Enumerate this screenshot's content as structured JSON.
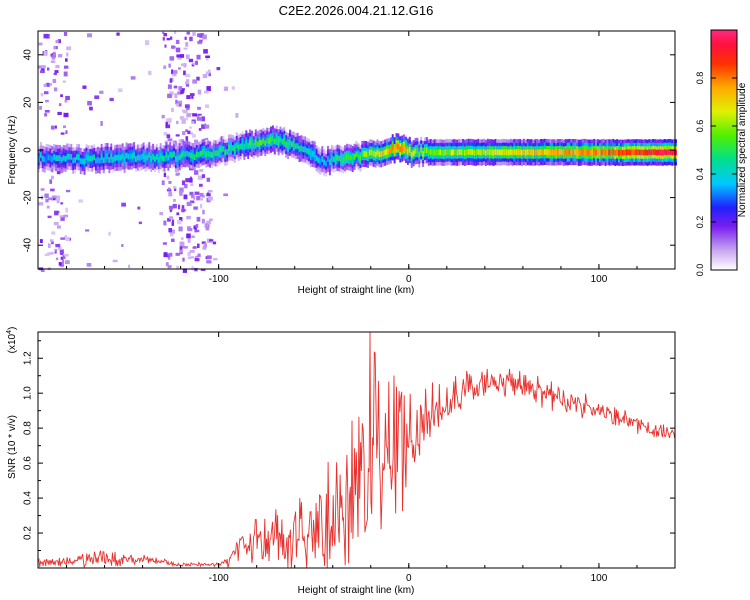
{
  "chart_data": [
    {
      "type": "heatmap",
      "title": "C2E2.2026.004.21.12.G16",
      "xlabel": "Height of straight line (km)",
      "ylabel": "Frequency (Hz)",
      "xlim": [
        -195,
        140
      ],
      "ylim": [
        -50,
        50
      ],
      "xticks": [
        -100,
        0,
        100
      ],
      "yticks": [
        -40,
        -20,
        0,
        20,
        40
      ],
      "ridge_x": [
        -195,
        -170,
        -150,
        -130,
        -110,
        -90,
        -80,
        -70,
        -60,
        -50,
        -45,
        -40,
        -30,
        -20,
        -10,
        -5,
        0,
        5,
        20,
        60,
        100,
        140
      ],
      "ridge_freq": [
        -3,
        -4,
        -3,
        -3,
        -2,
        1,
        3,
        4,
        2,
        -2,
        -5,
        -4,
        -3,
        -2,
        0,
        1,
        -1,
        -1,
        -1,
        -1,
        -1,
        -1
      ],
      "ridge_amplitude": [
        0.35,
        0.4,
        0.4,
        0.4,
        0.45,
        0.45,
        0.5,
        0.5,
        0.45,
        0.4,
        0.35,
        0.45,
        0.5,
        0.6,
        0.75,
        0.85,
        0.7,
        0.55,
        0.6,
        0.7,
        0.8,
        0.95
      ],
      "colorbar": {
        "label": "Normalized spectral amplitude",
        "range": [
          0.0,
          1.0
        ],
        "ticks": [
          0.0,
          0.2,
          0.4,
          0.6,
          0.8
        ],
        "tick_labels": [
          "0.0",
          "0.2",
          "0.4",
          "0.6",
          "0.8"
        ]
      }
    },
    {
      "type": "line",
      "xlabel": "Height of straight line (km)",
      "ylabel": "SNR (10 * v/v)",
      "scale_label": "(x10",
      "scale_exp": "4",
      "scale_close": ")",
      "xlim": [
        -195,
        140
      ],
      "ylim": [
        0,
        1.35
      ],
      "xticks": [
        -100,
        0,
        100
      ],
      "yticks": [
        0.2,
        0.4,
        0.6,
        0.8,
        1.0,
        1.2
      ],
      "ytick_labels": [
        "0.2",
        "0.4",
        "0.6",
        "0.8",
        "1.0",
        "1.2"
      ],
      "color": "#e8312d",
      "envelope_x": [
        -195,
        -180,
        -160,
        -140,
        -120,
        -100,
        -95,
        -90,
        -80,
        -70,
        -60,
        -50,
        -40,
        -30,
        -25,
        -20,
        -15,
        -10,
        0,
        10,
        20,
        30,
        40,
        50,
        60,
        70,
        80,
        90,
        100,
        110,
        120,
        130,
        140
      ],
      "envelope_mid": [
        0.03,
        0.04,
        0.06,
        0.05,
        0.02,
        0.02,
        0.04,
        0.1,
        0.14,
        0.18,
        0.2,
        0.22,
        0.28,
        0.35,
        0.42,
        0.48,
        0.55,
        0.62,
        0.72,
        0.85,
        0.95,
        1.02,
        1.05,
        1.06,
        1.04,
        1.0,
        0.96,
        0.94,
        0.9,
        0.86,
        0.82,
        0.78,
        0.76
      ],
      "envelope_spread": [
        0.03,
        0.03,
        0.05,
        0.03,
        0.01,
        0.01,
        0.05,
        0.1,
        0.12,
        0.16,
        0.2,
        0.28,
        0.35,
        0.4,
        0.45,
        0.5,
        0.5,
        0.4,
        0.25,
        0.18,
        0.12,
        0.1,
        0.08,
        0.08,
        0.08,
        0.07,
        0.07,
        0.07,
        0.06,
        0.06,
        0.05,
        0.05,
        0.05
      ]
    }
  ]
}
